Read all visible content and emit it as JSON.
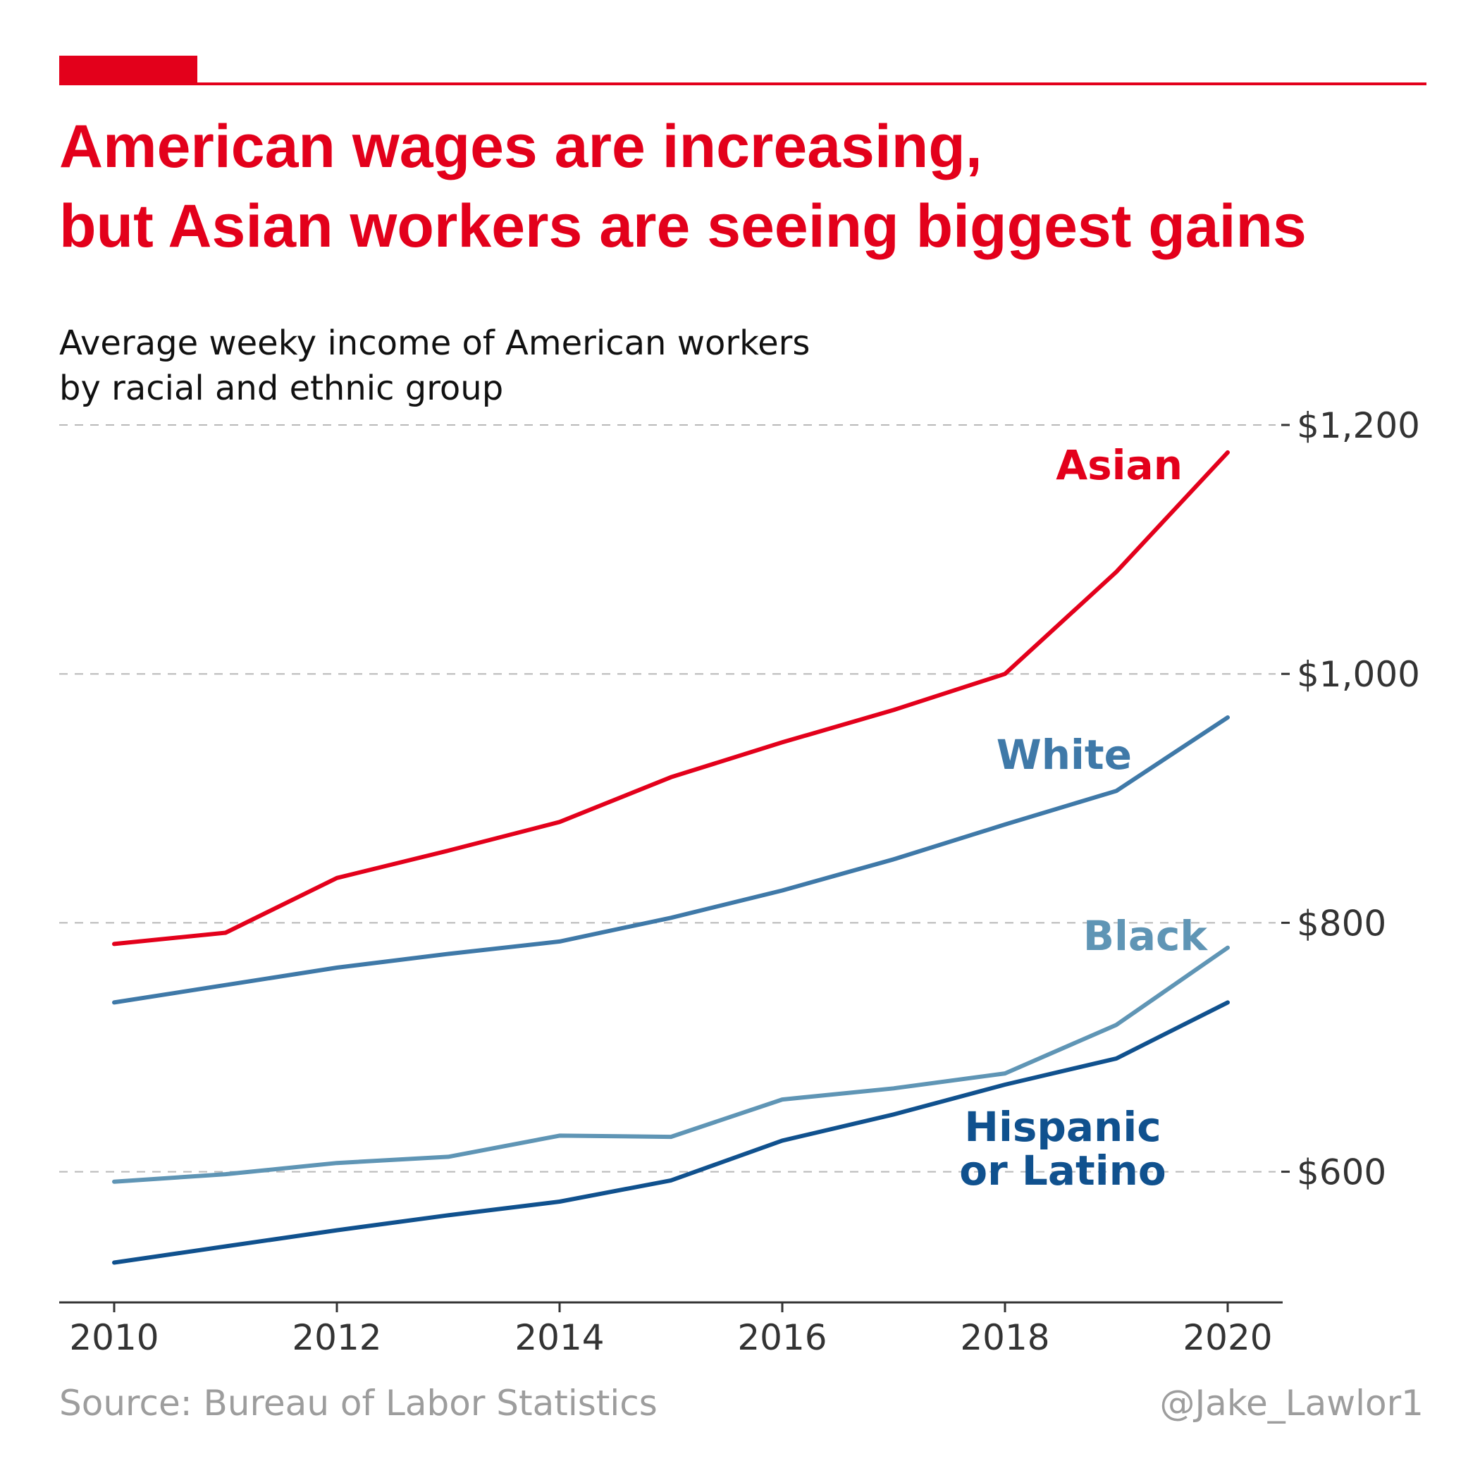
{
  "colors": {
    "accent": "#e3001b",
    "asian": "#e3001b",
    "white": "#3f79a8",
    "black": "#5f95b5",
    "hispanic": "#10518e",
    "grid": "#b8b8b8",
    "axis": "#333333",
    "footer": "#9d9d9d"
  },
  "header": {
    "title_line1": "American wages are increasing,",
    "title_line2": "but Asian workers are seeing biggest gains"
  },
  "subtitle": {
    "line1": "Average weeky income of American workers",
    "line2": "by racial and ethnic group"
  },
  "footer": {
    "source": "Source: Bureau of Labor Statistics",
    "credit": "@Jake_Lawlor1"
  },
  "chart_data": {
    "type": "line",
    "x": [
      2010,
      2011,
      2012,
      2013,
      2014,
      2015,
      2016,
      2017,
      2018,
      2019,
      2020
    ],
    "xlim": [
      2009.5,
      2020.5
    ],
    "ylim": [
      495,
      1200
    ],
    "x_ticks": [
      2010,
      2012,
      2014,
      2016,
      2018,
      2020
    ],
    "y_ticks": [
      {
        "value": 600,
        "label": "$600"
      },
      {
        "value": 800,
        "label": "$800"
      },
      {
        "value": 1000,
        "label": "$1,000"
      },
      {
        "value": 1200,
        "label": "$1,200"
      }
    ],
    "y_axis_position": "right",
    "grid": "horizontal dashed",
    "legend": "direct labels",
    "series": [
      {
        "name": "Asian",
        "color_key": "asian",
        "values": [
          783,
          792,
          836,
          858,
          881,
          917,
          945,
          971,
          1000,
          1082,
          1178
        ]
      },
      {
        "name": "White",
        "color_key": "white",
        "values": [
          736,
          750,
          764,
          775,
          785,
          804,
          826,
          851,
          879,
          906,
          965
        ]
      },
      {
        "name": "Black",
        "color_key": "black",
        "values": [
          592,
          598,
          607,
          612,
          629,
          628,
          658,
          667,
          679,
          718,
          780
        ]
      },
      {
        "name": "Hispanic or Latino",
        "label_lines": [
          "Hispanic",
          "or Latino"
        ],
        "color_key": "hispanic",
        "values": [
          527,
          540,
          553,
          565,
          576,
          593,
          625,
          646,
          670,
          691,
          736
        ]
      }
    ]
  }
}
